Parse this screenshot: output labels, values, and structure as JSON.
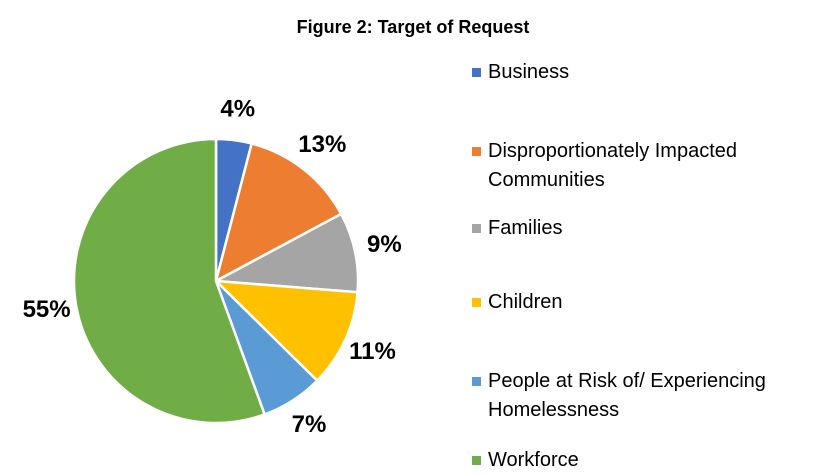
{
  "chart_data": {
    "type": "pie",
    "title": "Figure 2: Target of Request",
    "categories": [
      "Business",
      "Disproportionately Impacted Communities",
      "Families",
      "Children",
      "People at Risk of/ Experiencing Homelessness",
      "Workforce"
    ],
    "values": [
      4,
      13,
      9,
      11,
      7,
      55
    ],
    "value_labels": [
      "4%",
      "13%",
      "9%",
      "11%",
      "7%",
      "55%"
    ],
    "colors": [
      "#4472c4",
      "#ed7d31",
      "#a5a5a5",
      "#ffc000",
      "#5b9bd5",
      "#70ad47"
    ],
    "legend": "right"
  }
}
